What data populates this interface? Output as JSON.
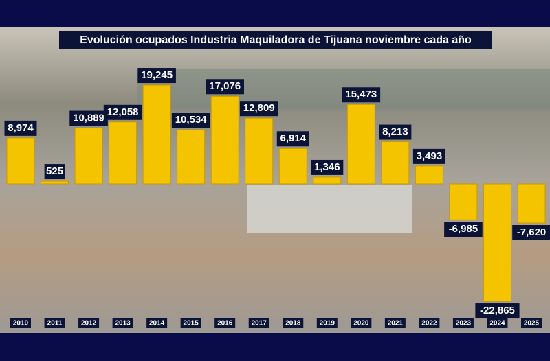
{
  "chart_data": {
    "type": "bar",
    "title": "Evolución ocupados Industria Maquiladora de Tijuana noviembre cada año",
    "categories": [
      "2010",
      "2011",
      "2012",
      "2013",
      "2014",
      "2015",
      "2016",
      "2017",
      "2018",
      "2019",
      "2020",
      "2021",
      "2022",
      "2023",
      "2024",
      "2025"
    ],
    "values": [
      8974,
      525,
      10889,
      12058,
      19245,
      10534,
      17076,
      12809,
      6914,
      1346,
      15473,
      8213,
      3493,
      -6985,
      -22865,
      -7620
    ],
    "value_labels": [
      "8,974",
      "525",
      "10,889",
      "12,058",
      "19,245",
      "10,534",
      "17,076",
      "12,809",
      "6,914",
      "1,346",
      "15,473",
      "8,213",
      "3,493",
      "-6,985",
      "-22,865",
      "-7,620"
    ],
    "color": "#f5c400"
  }
}
